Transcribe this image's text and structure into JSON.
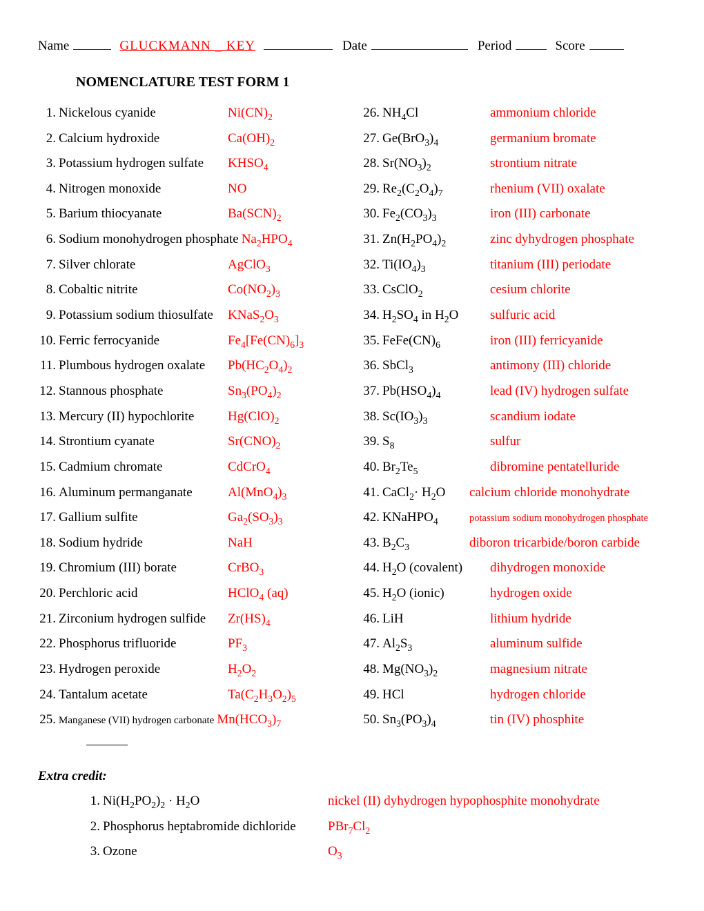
{
  "header": {
    "name_label": "Name",
    "key_text": "GLUCKMANN _ KEY",
    "date_label": "Date",
    "period_label": "Period",
    "score_label": "Score"
  },
  "title": "NOMENCLATURE TEST FORM 1",
  "left": [
    {
      "n": "1.",
      "q": "Nickelous cyanide",
      "a": "Ni(CN)<sub>2</sub>"
    },
    {
      "n": "2.",
      "q": "Calcium hydroxide",
      "a": "Ca(OH)<sub>2</sub>"
    },
    {
      "n": "3.",
      "q": "Potassium hydrogen sulfate",
      "a": "KHSO<sub>4</sub>"
    },
    {
      "n": "4.",
      "q": "Nitrogen monoxide",
      "a": "NO"
    },
    {
      "n": "5.",
      "q": "Barium thiocyanate",
      "a": "Ba(SCN)<sub>2</sub>"
    },
    {
      "n": "6.",
      "q": "Sodium monohydrogen phosphate",
      "a": "Na<sub>2</sub>HPO<sub>4</sub>",
      "tight": true
    },
    {
      "n": "7.",
      "q": "Silver chlorate",
      "a": "AgClO<sub>3</sub>"
    },
    {
      "n": "8.",
      "q": "Cobaltic nitrite",
      "a": "Co(NO<sub>2</sub>)<sub>3</sub>"
    },
    {
      "n": "9.",
      "q": "Potassium sodium thiosulfate",
      "a": "KNaS<sub>2</sub>O<sub>3</sub>"
    },
    {
      "n": "10.",
      "q": "Ferric ferrocyanide",
      "a": "Fe<sub>4</sub>[Fe(CN)<sub>6</sub>]<sub>3</sub>"
    },
    {
      "n": "11.",
      "q": "Plumbous hydrogen oxalate",
      "a": "Pb(HC<sub>2</sub>O<sub>4</sub>)<sub>2</sub>"
    },
    {
      "n": "12.",
      "q": "Stannous phosphate",
      "a": "Sn<sub>3</sub>(PO<sub>4</sub>)<sub>2</sub>"
    },
    {
      "n": "13.",
      "q": " Mercury (II) hypochlorite",
      "a": "Hg(ClO)<sub>2</sub>"
    },
    {
      "n": "14.",
      "q": " Strontium cyanate",
      "a": "Sr(CNO)<sub>2</sub>"
    },
    {
      "n": "15.",
      "q": " Cadmium chromate",
      "a": "CdCrO<sub>4</sub>"
    },
    {
      "n": "16.",
      "q": " Aluminum permanganate",
      "a": "Al(MnO<sub>4</sub>)<sub>3</sub>"
    },
    {
      "n": "17.",
      "q": " Gallium sulfite",
      "a": "Ga<sub>2</sub>(SO<sub>3</sub>)<sub>3</sub>"
    },
    {
      "n": "18.",
      "q": " Sodium hydride",
      "a": "NaH"
    },
    {
      "n": "19.",
      "q": " Chromium (III) borate",
      "a": "CrBO<sub>3</sub>"
    },
    {
      "n": "20.",
      "q": " Perchloric acid",
      "a": "HClO<sub>4</sub> (aq)"
    },
    {
      "n": "21.",
      "q": " Zirconium hydrogen sulfide",
      "a": "Zr(HS)<sub>4</sub>"
    },
    {
      "n": "22.",
      "q": " Phosphorus trifluoride",
      "a": "PF<sub>3</sub>"
    },
    {
      "n": "23.",
      "q": " Hydrogen peroxide",
      "a": "H<sub>2</sub>O<sub>2</sub>"
    },
    {
      "n": "24.",
      "q": " Tantalum acetate",
      "a": "Ta(C<sub>2</sub>H<sub>3</sub>O<sub>2</sub>)<sub>5</sub>"
    },
    {
      "n": "25.",
      "q": " <span class=\"small\">Manganese (VII) hydrogen carbonate</span>",
      "a": "Mn(HCO<sub>3</sub>)<sub>7</sub>",
      "tight": true
    }
  ],
  "right": [
    {
      "n": "26.",
      "q": " NH<sub>4</sub>Cl",
      "a": "ammonium chloride"
    },
    {
      "n": "27.",
      "q": " Ge(BrO<sub>3</sub>)<sub>4</sub>",
      "a": "germanium bromate"
    },
    {
      "n": "28.",
      "q": " Sr(NO<sub>3</sub>)<sub>2</sub>",
      "a": "strontium nitrate"
    },
    {
      "n": "29.",
      "q": "Re<sub>2</sub>(C<sub>2</sub>O<sub>4</sub>)<sub>7</sub>",
      "a": "rhenium (VII) oxalate"
    },
    {
      "n": "30.",
      "q": " Fe<sub>2</sub>(CO<sub>3</sub>)<sub>3</sub>",
      "a": "iron (III) carbonate"
    },
    {
      "n": "31.",
      "q": " Zn(H<sub>2</sub>PO<sub>4</sub>)<sub>2</sub>",
      "a": "zinc dyhydrogen phosphate"
    },
    {
      "n": "32.",
      "q": "Ti(IO<sub>4</sub>)<sub>3</sub>",
      "a": "titanium (III) periodate"
    },
    {
      "n": "33.",
      "q": "CsClO<sub>2</sub>",
      "a": "cesium chlorite"
    },
    {
      "n": "34.",
      "q": " H<sub>2</sub>SO<sub>4</sub> in H<sub>2</sub>O",
      "a": "sulfuric acid"
    },
    {
      "n": "35.",
      "q": "FeFe(CN)<sub>6</sub>",
      "a": "iron (III) ferricyanide"
    },
    {
      "n": "36.",
      "q": "SbCl<sub>3</sub>",
      "a": "antimony (III) chloride"
    },
    {
      "n": "37.",
      "q": "Pb(HSO<sub>4</sub>)<sub>4</sub>",
      "a": "lead (IV) hydrogen sulfate"
    },
    {
      "n": "38.",
      "q": "Sc(IO<sub>3</sub>)<sub>3</sub>",
      "a": "scandium iodate"
    },
    {
      "n": "39.",
      "q": "S<sub>8</sub>",
      "a": "sulfur"
    },
    {
      "n": "40.",
      "q": "Br<sub>2</sub>Te<sub>5</sub>",
      "a": "dibromine pentatelluride"
    },
    {
      "n": "41.",
      "q": "CaCl<sub>2</sub>· H<sub>2</sub>O",
      "a": "calcium chloride monohydrate",
      "wide": true
    },
    {
      "n": "42.",
      "q": "KNaHPO<sub>4</sub>",
      "a": "<span class=\"smaller\">potassium sodium monohydrogen phosphate</span>",
      "wide": true
    },
    {
      "n": "43.",
      "q": "B<sub>2</sub>C<sub>3</sub>",
      "a": "diboron tricarbide/boron carbide",
      "wide": true
    },
    {
      "n": "44.",
      "q": "H<sub>2</sub>O (covalent)",
      "a": "dihydrogen monoxide"
    },
    {
      "n": "45.",
      "q": "H<sub>2</sub>O (ionic)",
      "a": "hydrogen oxide"
    },
    {
      "n": "46.",
      "q": "LiH",
      "a": "lithium hydride"
    },
    {
      "n": "47.",
      "q": "Al<sub>2</sub>S<sub>3</sub>",
      "a": "aluminum sulfide"
    },
    {
      "n": "48.",
      "q": "Mg(NO<sub>3</sub>)<sub>2</sub>",
      "a": "magnesium nitrate"
    },
    {
      "n": "49.",
      "q": "HCl",
      "a": "hydrogen chloride"
    },
    {
      "n": "50.",
      "q": "Sn<sub>3</sub>(PO<sub>3</sub>)<sub>4</sub>",
      "a": "tin (IV) phosphite"
    }
  ],
  "extra_title": "Extra credit:",
  "extra": [
    {
      "n": "1.",
      "q": "Ni(H<sub>2</sub>PO<sub>2</sub>)<sub>2</sub> · H<sub>2</sub>O",
      "a": "nickel (II) dyhydrogen hypophosphite monohydrate"
    },
    {
      "n": "2.",
      "q": "Phosphorus heptabromide dichloride",
      "a": "PBr<sub>7</sub>Cl<sub>2</sub>"
    },
    {
      "n": "3.",
      "q": "Ozone",
      "a": "O<sub>3</sub>"
    }
  ]
}
